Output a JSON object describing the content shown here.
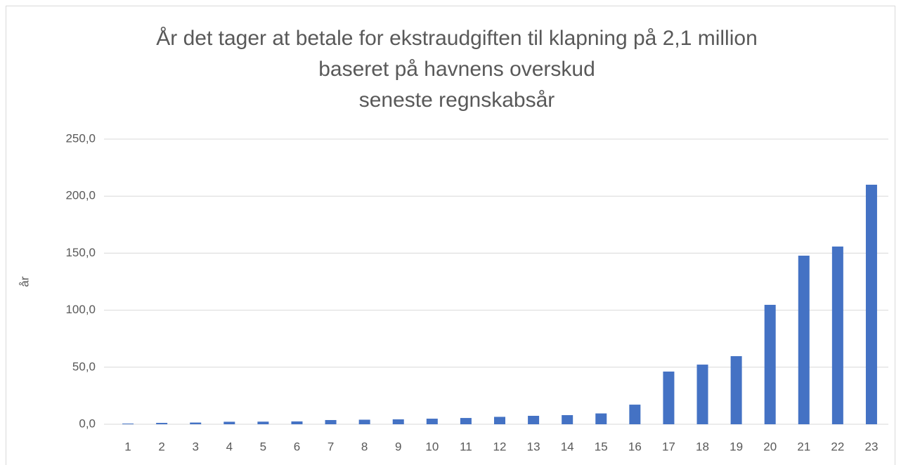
{
  "chart_data": {
    "type": "bar",
    "title": [
      "År det tager at betale for ekstraudgiften til klapning på 2,1 million",
      "baseret på havnens overskud",
      "seneste regnskabsår"
    ],
    "y_label": "år",
    "categories": [
      "1",
      "2",
      "3",
      "4",
      "5",
      "6",
      "7",
      "8",
      "9",
      "10",
      "11",
      "12",
      "13",
      "14",
      "15",
      "16",
      "17",
      "18",
      "19",
      "20",
      "21",
      "22",
      "23"
    ],
    "values": [
      0.6,
      1.2,
      1.5,
      2.2,
      2.3,
      2.5,
      3.7,
      4.0,
      4.3,
      4.9,
      5.5,
      6.5,
      7.4,
      8.0,
      9.5,
      17.2,
      46.2,
      52.3,
      59.7,
      104.7,
      147.8,
      155.8,
      210.0
    ],
    "color": "#4472c4",
    "ylim": [
      0,
      250
    ],
    "yticks": [
      {
        "value": 0,
        "label": "0,0"
      },
      {
        "value": 50,
        "label": "50,0"
      },
      {
        "value": 100,
        "label": "100,0"
      },
      {
        "value": 150,
        "label": "150,0"
      },
      {
        "value": 200,
        "label": "200,0"
      },
      {
        "value": 250,
        "label": "250,0"
      }
    ],
    "grid": true
  }
}
